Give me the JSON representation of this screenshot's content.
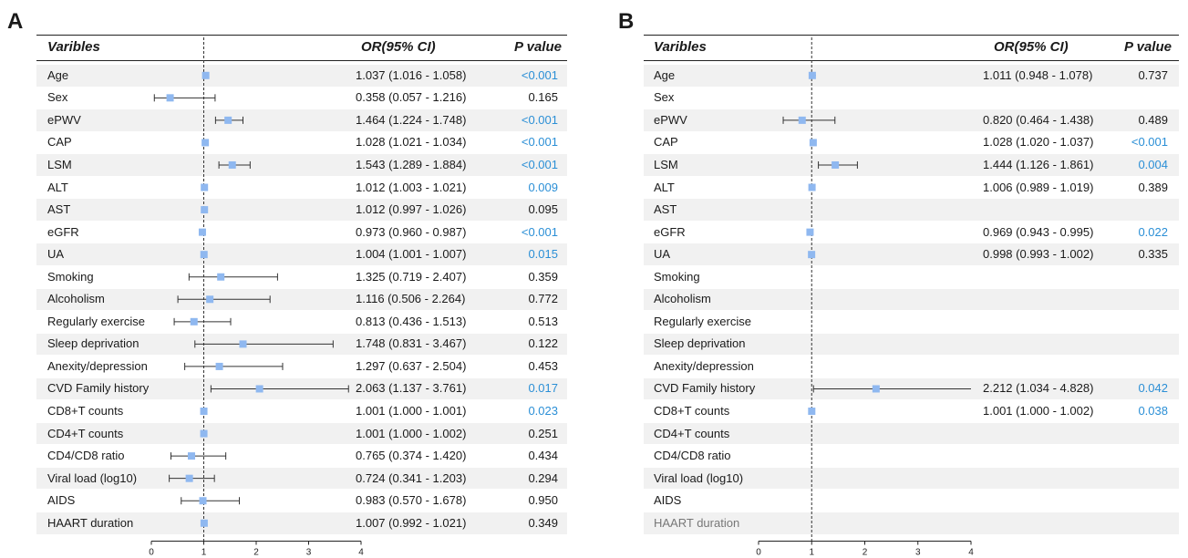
{
  "colors": {
    "marker": "#8fb8f0",
    "significant": "#2b8fd6",
    "whisker": "#333333",
    "stripe": "#f1f1f1"
  },
  "chart_data": [
    {
      "type": "forest",
      "panel_label": "A",
      "headers": {
        "variable": "Varibles",
        "or": "OR(95% CI)",
        "p": "P value"
      },
      "xlim": [
        0,
        4
      ],
      "reference_line": 1,
      "xticks": [
        "0",
        "1",
        "2",
        "3",
        "4"
      ],
      "rows": [
        {
          "label": "Age",
          "or": 1.037,
          "lo": 1.016,
          "hi": 1.058,
          "or_text": "1.037 (1.016 - 1.058)",
          "p": "<0.001",
          "sig": true
        },
        {
          "label": "Sex",
          "or": 0.358,
          "lo": 0.057,
          "hi": 1.216,
          "or_text": "0.358 (0.057 - 1.216)",
          "p": "0.165",
          "sig": false
        },
        {
          "label": "ePWV",
          "or": 1.464,
          "lo": 1.224,
          "hi": 1.748,
          "or_text": "1.464 (1.224 - 1.748)",
          "p": "<0.001",
          "sig": true
        },
        {
          "label": "CAP",
          "or": 1.028,
          "lo": 1.021,
          "hi": 1.034,
          "or_text": "1.028 (1.021 - 1.034)",
          "p": "<0.001",
          "sig": true
        },
        {
          "label": "LSM",
          "or": 1.543,
          "lo": 1.289,
          "hi": 1.884,
          "or_text": "1.543 (1.289  - 1.884)",
          "p": "<0.001",
          "sig": true
        },
        {
          "label": "ALT",
          "or": 1.012,
          "lo": 1.003,
          "hi": 1.021,
          "or_text": "1.012 (1.003  - 1.021)",
          "p": "0.009",
          "sig": true
        },
        {
          "label": "AST",
          "or": 1.012,
          "lo": 0.997,
          "hi": 1.026,
          "or_text": "1.012 (0.997 - 1.026)",
          "p": "0.095",
          "sig": false
        },
        {
          "label": "eGFR",
          "or": 0.973,
          "lo": 0.96,
          "hi": 0.987,
          "or_text": "0.973 (0.960 - 0.987)",
          "p": "<0.001",
          "sig": true
        },
        {
          "label": "UA",
          "or": 1.004,
          "lo": 1.001,
          "hi": 1.007,
          "or_text": "1.004 (1.001 - 1.007)",
          "p": "0.015",
          "sig": true
        },
        {
          "label": "Smoking",
          "or": 1.325,
          "lo": 0.719,
          "hi": 2.407,
          "or_text": "1.325 (0.719 - 2.407)",
          "p": "0.359",
          "sig": false
        },
        {
          "label": "Alcoholism",
          "or": 1.116,
          "lo": 0.506,
          "hi": 2.264,
          "or_text": "1.116 (0.506 -  2.264)",
          "p": "0.772",
          "sig": false
        },
        {
          "label": "Regularly exercise",
          "or": 0.813,
          "lo": 0.436,
          "hi": 1.513,
          "or_text": "0.813 (0.436 - 1.513)",
          "p": "0.513",
          "sig": false
        },
        {
          "label": "Sleep deprivation",
          "or": 1.748,
          "lo": 0.831,
          "hi": 3.467,
          "or_text": "1.748 (0.831 - 3.467)",
          "p": "0.122",
          "sig": false
        },
        {
          "label": "Anexity/depression",
          "or": 1.297,
          "lo": 0.637,
          "hi": 2.504,
          "or_text": "1.297 (0.637 - 2.504)",
          "p": "0.453",
          "sig": false
        },
        {
          "label": "CVD Family history",
          "or": 2.063,
          "lo": 1.137,
          "hi": 3.761,
          "or_text": "2.063 (1.137 - 3.761)",
          "p": "0.017",
          "sig": true
        },
        {
          "label": "CD8+T counts",
          "or": 1.001,
          "lo": 1.0,
          "hi": 1.001,
          "or_text": "1.001 (1.000 - 1.001)",
          "p": "0.023",
          "sig": true
        },
        {
          "label": "CD4+T counts",
          "or": 1.001,
          "lo": 1.0,
          "hi": 1.002,
          "or_text": "1.001 (1.000 - 1.002)",
          "p": "0.251",
          "sig": false
        },
        {
          "label": "CD4/CD8 ratio",
          "or": 0.765,
          "lo": 0.374,
          "hi": 1.42,
          "or_text": "0.765 (0.374 - 1.420)",
          "p": "0.434",
          "sig": false
        },
        {
          "label": "Viral load (log10)",
          "or": 0.724,
          "lo": 0.341,
          "hi": 1.203,
          "or_text": "0.724 (0.341 - 1.203)",
          "p": "0.294",
          "sig": false
        },
        {
          "label": "AIDS",
          "or": 0.983,
          "lo": 0.57,
          "hi": 1.678,
          "or_text": "0.983 (0.570 - 1.678)",
          "p": "0.950",
          "sig": false
        },
        {
          "label": "HAART duration",
          "or": 1.007,
          "lo": 0.992,
          "hi": 1.021,
          "or_text": "1.007 (0.992 - 1.021)",
          "p": "0.349",
          "sig": false
        }
      ]
    },
    {
      "type": "forest",
      "panel_label": "B",
      "headers": {
        "variable": "Varibles",
        "or": "OR(95% CI)",
        "p": "P value"
      },
      "xlim": [
        0,
        4
      ],
      "reference_line": 1,
      "xticks": [
        "0",
        "1",
        "2",
        "3",
        "4"
      ],
      "rows": [
        {
          "label": "Age",
          "or": 1.011,
          "lo": 0.948,
          "hi": 1.078,
          "or_text": "1.011 (0.948 - 1.078)",
          "p": "0.737",
          "sig": false
        },
        {
          "label": "Sex"
        },
        {
          "label": "ePWV",
          "or": 0.82,
          "lo": 0.464,
          "hi": 1.438,
          "or_text": "0.820 (0.464 - 1.438)",
          "p": "0.489",
          "sig": false
        },
        {
          "label": "CAP",
          "or": 1.028,
          "lo": 1.02,
          "hi": 1.037,
          "or_text": "1.028 (1.020 - 1.037)",
          "p": "<0.001",
          "sig": true
        },
        {
          "label": "LSM",
          "or": 1.444,
          "lo": 1.126,
          "hi": 1.861,
          "or_text": "1.444 (1.126 - 1.861)",
          "p": "0.004",
          "sig": true
        },
        {
          "label": "ALT",
          "or": 1.006,
          "lo": 0.989,
          "hi": 1.019,
          "or_text": "1.006 (0.989 - 1.019)",
          "p": "0.389",
          "sig": false
        },
        {
          "label": "AST"
        },
        {
          "label": "eGFR",
          "or": 0.969,
          "lo": 0.943,
          "hi": 0.995,
          "or_text": "0.969 (0.943 - 0.995)",
          "p": "0.022",
          "sig": true
        },
        {
          "label": "UA",
          "or": 0.998,
          "lo": 0.993,
          "hi": 1.002,
          "or_text": "0.998 (0.993 - 1.002)",
          "p": "0.335",
          "sig": false
        },
        {
          "label": "Smoking"
        },
        {
          "label": "Alcoholism"
        },
        {
          "label": "Regularly exercise"
        },
        {
          "label": "Sleep deprivation"
        },
        {
          "label": "Anexity/depression"
        },
        {
          "label": "CVD Family history",
          "or": 2.212,
          "lo": 1.034,
          "hi": 4.828,
          "or_text": "2.212 (1.034 - 4.828)",
          "p": "0.042",
          "sig": true
        },
        {
          "label": "CD8+T counts",
          "or": 1.001,
          "lo": 1.0,
          "hi": 1.002,
          "or_text": "1.001 (1.000 - 1.002)",
          "p": "0.038",
          "sig": true
        },
        {
          "label": "CD4+T counts"
        },
        {
          "label": "CD4/CD8 ratio"
        },
        {
          "label": "Viral load (log10)"
        },
        {
          "label": "AIDS"
        },
        {
          "label": "HAART duration",
          "muted": true
        }
      ]
    }
  ]
}
